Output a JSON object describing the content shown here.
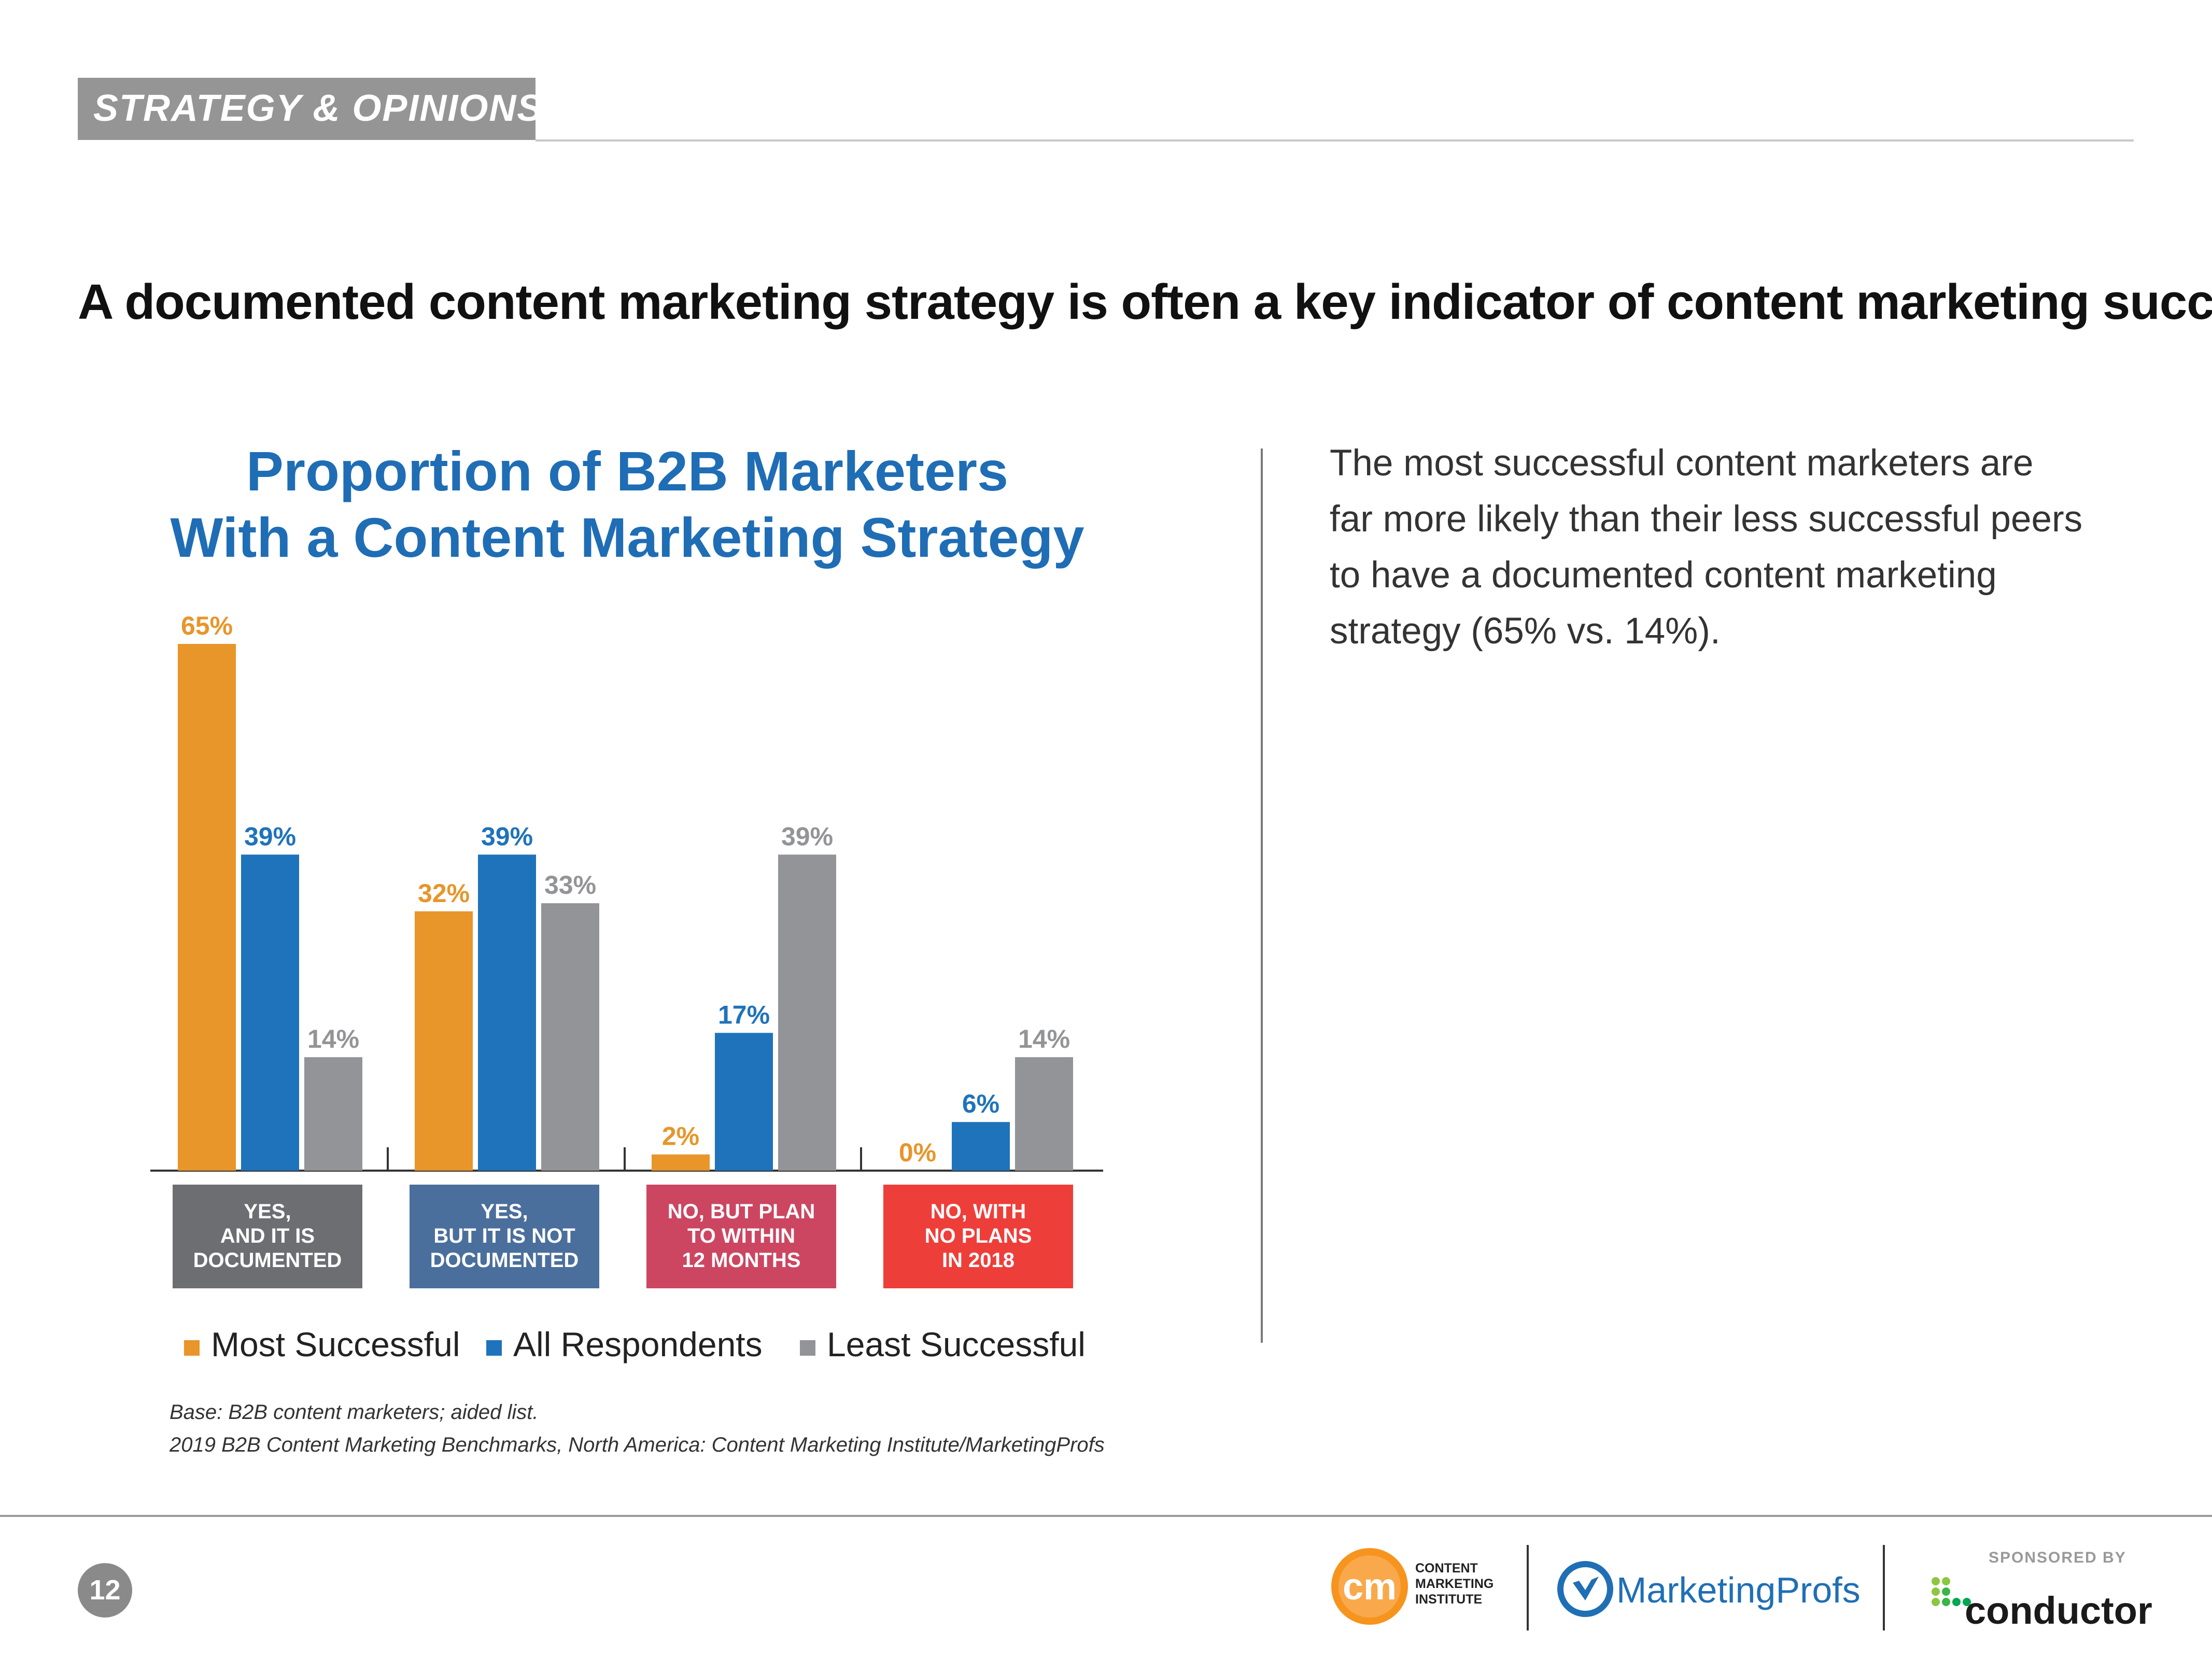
{
  "section_label": "STRATEGY & OPINIONS",
  "headline": "A documented content marketing strategy is often a key indicator of content marketing success.",
  "chart_title": [
    "Proportion of B2B Marketers",
    "With a Content Marketing Strategy"
  ],
  "colors": {
    "most_successful": "#e8952a",
    "all_respondents": "#1f73ba",
    "least_successful": "#939497",
    "title_blue": "#1f6db5",
    "category_1": "#6d6e71",
    "category_2": "#4b6f9c",
    "category_3": "#cc4661",
    "category_4": "#ee3e3a"
  },
  "chart_data": {
    "type": "bar",
    "title": "Proportion of B2B Marketers With a Content Marketing Strategy",
    "categories": [
      [
        "YES,",
        "AND IT IS",
        "DOCUMENTED"
      ],
      [
        "YES,",
        "BUT IT IS NOT",
        "DOCUMENTED"
      ],
      [
        "NO, BUT PLAN",
        "TO WITHIN",
        "12 MONTHS"
      ],
      [
        "NO, WITH",
        "NO PLANS",
        "IN 2018"
      ]
    ],
    "series": [
      {
        "name": "Most Successful",
        "values": [
          65,
          32,
          2,
          0
        ],
        "labels": [
          "65%",
          "32%",
          "2%",
          "0%"
        ]
      },
      {
        "name": "All Respondents",
        "values": [
          39,
          39,
          17,
          6
        ],
        "labels": [
          "39%",
          "39%",
          "17%",
          "6%"
        ]
      },
      {
        "name": "Least Successful",
        "values": [
          14,
          33,
          39,
          14
        ],
        "labels": [
          "14%",
          "33%",
          "39%",
          "14%"
        ]
      }
    ],
    "ylim": [
      0,
      65
    ],
    "grid": false,
    "legend": "bottom"
  },
  "notes": [
    "Base: B2B content marketers; aided list.",
    "2019 B2B Content Marketing Benchmarks, North America: Content Marketing Institute/MarketingProfs"
  ],
  "body_text": [
    "The most successful content marketers are",
    "far more likely than their less successful peers",
    "to have a documented content marketing",
    "strategy (65% vs. 14%)."
  ],
  "footer": {
    "page_number": "12",
    "cmi_logo_text": [
      "CONTENT",
      "MARKETING",
      "INSTITUTE"
    ],
    "cmi_mark": "cm",
    "marketingprofs": "MarketingProfs",
    "sponsored_by": "SPONSORED BY",
    "conductor": "conductor"
  }
}
